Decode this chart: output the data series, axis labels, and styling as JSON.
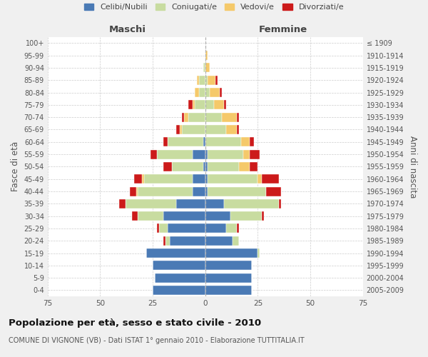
{
  "age_groups": [
    "0-4",
    "5-9",
    "10-14",
    "15-19",
    "20-24",
    "25-29",
    "30-34",
    "35-39",
    "40-44",
    "45-49",
    "50-54",
    "55-59",
    "60-64",
    "65-69",
    "70-74",
    "75-79",
    "80-84",
    "85-89",
    "90-94",
    "95-99",
    "100+"
  ],
  "birth_years": [
    "2005-2009",
    "2000-2004",
    "1995-1999",
    "1990-1994",
    "1985-1989",
    "1980-1984",
    "1975-1979",
    "1970-1974",
    "1965-1969",
    "1960-1964",
    "1955-1959",
    "1950-1954",
    "1945-1949",
    "1940-1944",
    "1935-1939",
    "1930-1934",
    "1925-1929",
    "1920-1924",
    "1915-1919",
    "1910-1914",
    "≤ 1909"
  ],
  "maschi": {
    "celibi": [
      25,
      24,
      25,
      28,
      17,
      18,
      20,
      14,
      6,
      6,
      1,
      6,
      1,
      0,
      0,
      0,
      0,
      0,
      0,
      0,
      0
    ],
    "coniugati": [
      0,
      0,
      0,
      0,
      2,
      4,
      12,
      24,
      26,
      23,
      15,
      17,
      17,
      11,
      8,
      5,
      3,
      3,
      1,
      0,
      0
    ],
    "vedovi": [
      0,
      0,
      0,
      0,
      0,
      0,
      0,
      0,
      1,
      1,
      0,
      0,
      0,
      1,
      2,
      1,
      2,
      1,
      0,
      0,
      0
    ],
    "divorziati": [
      0,
      0,
      0,
      0,
      1,
      1,
      3,
      3,
      3,
      4,
      4,
      3,
      2,
      2,
      1,
      2,
      0,
      0,
      0,
      0,
      0
    ]
  },
  "femmine": {
    "nubili": [
      22,
      22,
      22,
      25,
      13,
      10,
      12,
      9,
      1,
      1,
      1,
      1,
      0,
      0,
      0,
      0,
      0,
      0,
      0,
      0,
      0
    ],
    "coniugate": [
      0,
      0,
      0,
      1,
      3,
      5,
      15,
      26,
      28,
      24,
      15,
      17,
      17,
      10,
      8,
      4,
      2,
      1,
      0,
      0,
      0
    ],
    "vedove": [
      0,
      0,
      0,
      0,
      0,
      0,
      0,
      0,
      0,
      2,
      5,
      3,
      4,
      5,
      7,
      5,
      5,
      4,
      2,
      1,
      0
    ],
    "divorziate": [
      0,
      0,
      0,
      0,
      0,
      1,
      1,
      1,
      7,
      8,
      4,
      5,
      2,
      1,
      1,
      1,
      1,
      1,
      0,
      0,
      0
    ]
  },
  "colors": {
    "celibi": "#4a7ab5",
    "coniugati": "#c8dca0",
    "vedovi": "#f5c96a",
    "divorziati": "#cc1a1a"
  },
  "xlim": 75,
  "title": "Popolazione per età, sesso e stato civile - 2010",
  "subtitle": "COMUNE DI VIGNONE (VB) - Dati ISTAT 1° gennaio 2010 - Elaborazione TUTTITALIA.IT",
  "ylabel_left": "Fasce di età",
  "ylabel_right": "Anni di nascita",
  "xlabel_left": "Maschi",
  "xlabel_right": "Femmine",
  "bg_color": "#f0f0f0",
  "plot_bg_color": "#ffffff",
  "grid_color": "#cccccc"
}
